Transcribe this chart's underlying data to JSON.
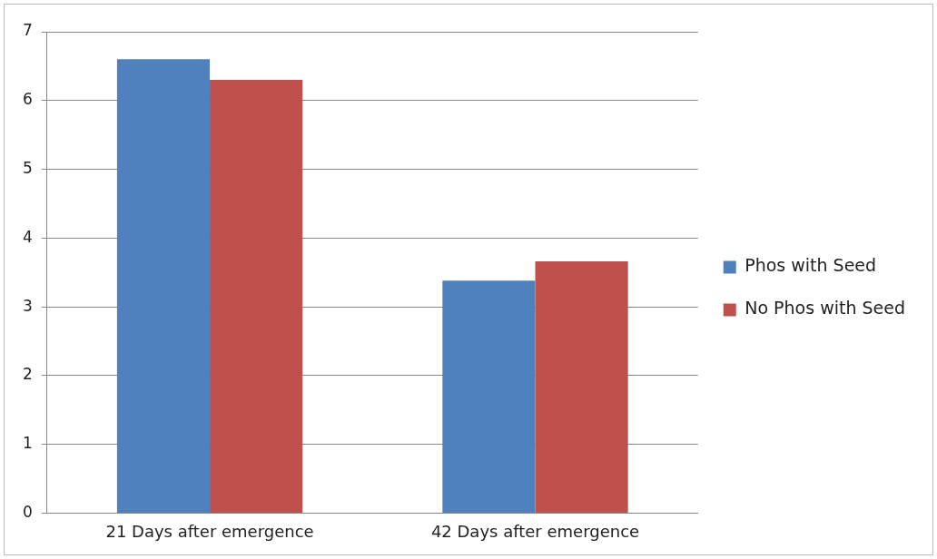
{
  "chart_data": {
    "type": "bar",
    "categories": [
      "21 Days after emergence",
      "42 Days after emergence"
    ],
    "series": [
      {
        "name": "Phos with Seed",
        "color": "#4f81bd",
        "values": [
          6.6,
          3.38
        ]
      },
      {
        "name": "No Phos with Seed",
        "color": "#c0504d",
        "values": [
          6.3,
          3.66
        ]
      }
    ],
    "ylim": [
      0,
      7
    ],
    "yticks": [
      0,
      1,
      2,
      3,
      4,
      5,
      6,
      7
    ],
    "grid": "y",
    "legend": "right"
  }
}
